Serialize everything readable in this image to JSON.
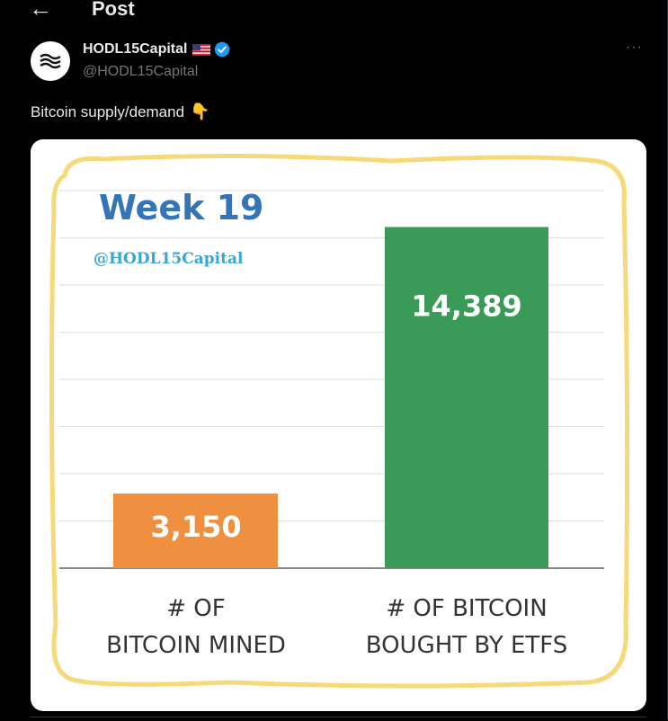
{
  "header": {
    "back_icon": "arrow-left-icon",
    "title": "Post"
  },
  "author": {
    "display_name": "HODL15Capital",
    "handle": "@HODL15Capital",
    "flag_icon": "us-flag-icon",
    "verified_icon": "verified-badge-icon",
    "verified_color": "#1d9bf0"
  },
  "more_icon": "···",
  "tweet": {
    "text": "Bitcoin supply/demand",
    "emoji": "👇"
  },
  "chart_data": {
    "type": "bar",
    "title": "Week 19",
    "subtitle": "@HODL15Capital",
    "categories": [
      "# OF BITCOIN MINED",
      "# OF BITCOIN BOUGHT BY ETFS"
    ],
    "category_lines": [
      [
        "# OF",
        "BITCOIN MINED"
      ],
      [
        "# OF BITCOIN",
        "BOUGHT BY ETFS"
      ]
    ],
    "values": [
      3150,
      14389
    ],
    "value_labels": [
      "3,150",
      "14,389"
    ],
    "colors": [
      "#ef9040",
      "#3a9b58"
    ],
    "ylim": [
      0,
      16000
    ],
    "grid": true,
    "border_color": "#f5d97a",
    "title_color": "#3475b8",
    "subtitle_color": "#39a7d6"
  }
}
